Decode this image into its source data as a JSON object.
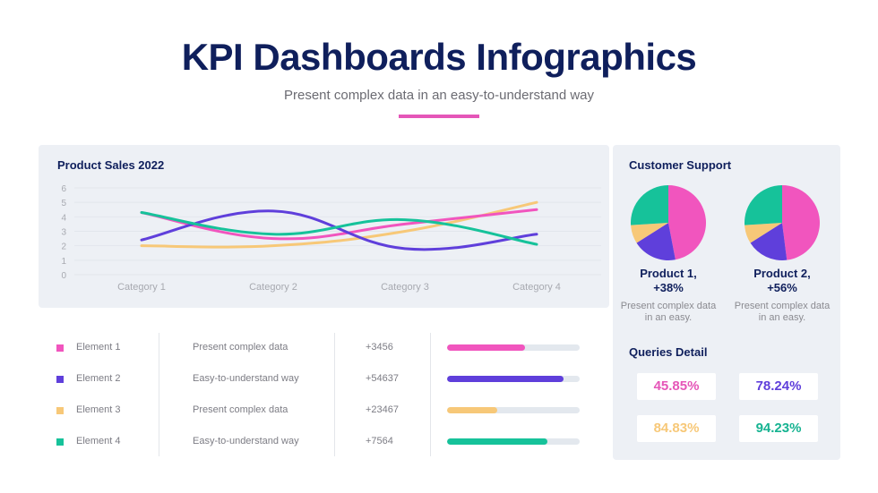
{
  "header": {
    "title": "KPI Dashboards Infographics",
    "subtitle": "Present complex data in an easy-to-understand way"
  },
  "colors": {
    "navy": "#0f1f5c",
    "pink": "#f155be",
    "purple": "#5f3fdb",
    "yellow": "#f7c878",
    "teal": "#16c29a"
  },
  "chart_data": [
    {
      "type": "line",
      "title": "Product Sales 2022",
      "categories": [
        "Category 1",
        "Category 2",
        "Category 3",
        "Category 4"
      ],
      "ylim": [
        0,
        6
      ],
      "yticks": [
        "0",
        "1",
        "2",
        "3",
        "4",
        "5",
        "6"
      ],
      "grid": true,
      "smooth": true,
      "series": [
        {
          "name": "Element 1",
          "color": "#f155be",
          "values": [
            4.3,
            2.5,
            3.5,
            4.5
          ]
        },
        {
          "name": "Element 2",
          "color": "#5f3fdb",
          "values": [
            2.4,
            4.4,
            1.8,
            2.8
          ]
        },
        {
          "name": "Element 3",
          "color": "#f7c878",
          "values": [
            2.0,
            2.0,
            3.0,
            5.0
          ]
        },
        {
          "name": "Element 4",
          "color": "#16c29a",
          "values": [
            4.3,
            2.8,
            3.8,
            2.1
          ]
        }
      ]
    },
    {
      "type": "pie",
      "title": "Product 1,",
      "change": "+38%",
      "description": "Present complex data in an easy.",
      "slices": [
        {
          "name": "Element 1",
          "color": "#f155be",
          "value": 47
        },
        {
          "name": "Element 2",
          "color": "#5f3fdb",
          "value": 19
        },
        {
          "name": "Element 3",
          "color": "#f7c878",
          "value": 8
        },
        {
          "name": "Element 4",
          "color": "#16c29a",
          "value": 26
        }
      ]
    },
    {
      "type": "pie",
      "title": "Product 2,",
      "change": "+56%",
      "description": "Present complex data in an easy.",
      "slices": [
        {
          "name": "Element 1",
          "color": "#f155be",
          "value": 48
        },
        {
          "name": "Element 2",
          "color": "#5f3fdb",
          "value": 18
        },
        {
          "name": "Element 3",
          "color": "#f7c878",
          "value": 8
        },
        {
          "name": "Element 4",
          "color": "#16c29a",
          "value": 26
        }
      ]
    }
  ],
  "support": {
    "title": "Customer Support",
    "queries_title": "Queries Detail",
    "queries": [
      {
        "value": "45.85%",
        "color": "#e556b8"
      },
      {
        "value": "78.24%",
        "color": "#5f3fdb"
      },
      {
        "value": "84.83%",
        "color": "#f7c878"
      },
      {
        "value": "94.23%",
        "color": "#16b391"
      }
    ]
  },
  "elements": [
    {
      "name": "Element 1",
      "desc": "Present complex data",
      "value": "+3456",
      "progress": 0.59,
      "color": "#f155be"
    },
    {
      "name": "Element 2",
      "desc": "Easy-to-understand way",
      "value": "+54637",
      "progress": 0.88,
      "color": "#5f3fdb"
    },
    {
      "name": "Element 3",
      "desc": "Present complex data",
      "value": "+23467",
      "progress": 0.38,
      "color": "#f7c878"
    },
    {
      "name": "Element 4",
      "desc": "Easy-to-understand way",
      "value": "+7564",
      "progress": 0.76,
      "color": "#16c29a"
    }
  ]
}
